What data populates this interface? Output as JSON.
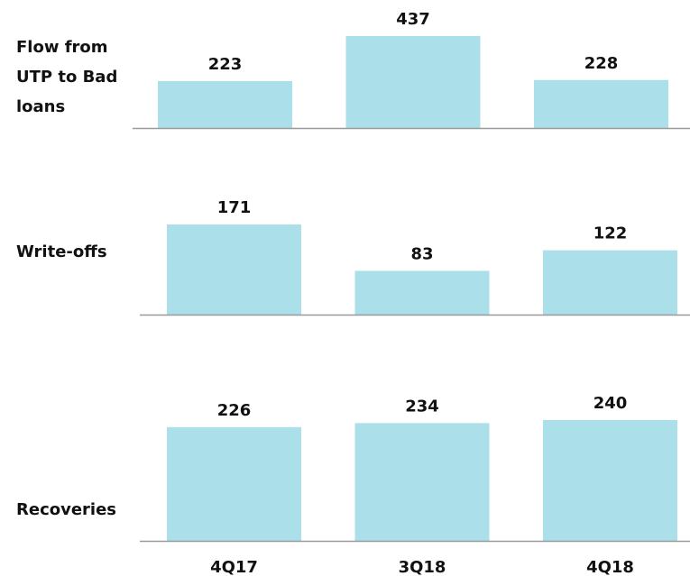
{
  "chart_data": [
    {
      "type": "bar",
      "title": "Flow from UTP to Bad loans",
      "values": [
        223,
        437,
        228
      ],
      "color": "#abe0eb"
    },
    {
      "type": "bar",
      "title": "Write-offs",
      "values": [
        171,
        83,
        122
      ],
      "color": "#abe0eb"
    },
    {
      "type": "bar",
      "title": "Recoveries",
      "categories": [
        "4Q17",
        "3Q18",
        "4Q18"
      ],
      "values": [
        226,
        234,
        240
      ],
      "color": "#abe0eb"
    }
  ]
}
